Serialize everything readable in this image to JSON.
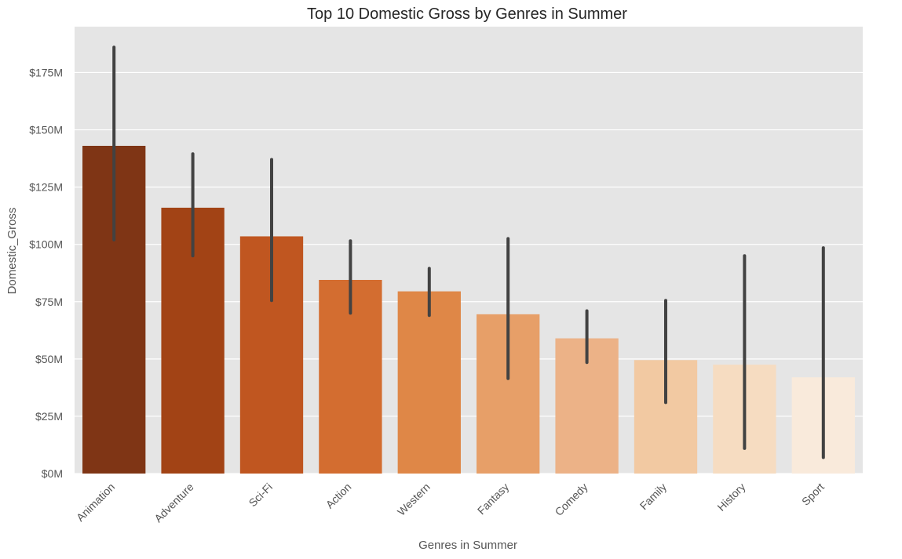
{
  "chart_data": {
    "type": "bar",
    "title": "Top 10 Domestic Gross by Genres in Summer",
    "xlabel": "Genres in Summer",
    "ylabel": "Domestic_Gross",
    "ylim": [
      0,
      195
    ],
    "value_unit": "$M",
    "yticks": [
      0,
      25,
      50,
      75,
      100,
      125,
      150,
      175
    ],
    "ytick_labels": [
      "$0M",
      "$25M",
      "$50M",
      "$75M",
      "$100M",
      "$125M",
      "$150M",
      "$175M"
    ],
    "grid": true,
    "background": "#e5e5e5",
    "categories": [
      "Animation",
      "Adventure",
      "Sci-Fi",
      "Action",
      "Western",
      "Fantasy",
      "Comedy",
      "Family",
      "History",
      "Sport"
    ],
    "values": [
      143,
      116,
      103.5,
      84.5,
      79.5,
      69.5,
      59,
      49.5,
      47.5,
      42
    ],
    "error_low": [
      102,
      95,
      75.5,
      70,
      69,
      41.5,
      48.5,
      31,
      11,
      7
    ],
    "error_high": [
      186,
      139.5,
      137,
      101.5,
      89.5,
      102.5,
      71,
      75.5,
      95,
      98.5
    ],
    "colors": [
      "#7f3515",
      "#a24315",
      "#c05620",
      "#d36d30",
      "#df8747",
      "#e79f68",
      "#ecb287",
      "#f2c9a2",
      "#f6dcc1",
      "#f9eadb"
    ]
  }
}
